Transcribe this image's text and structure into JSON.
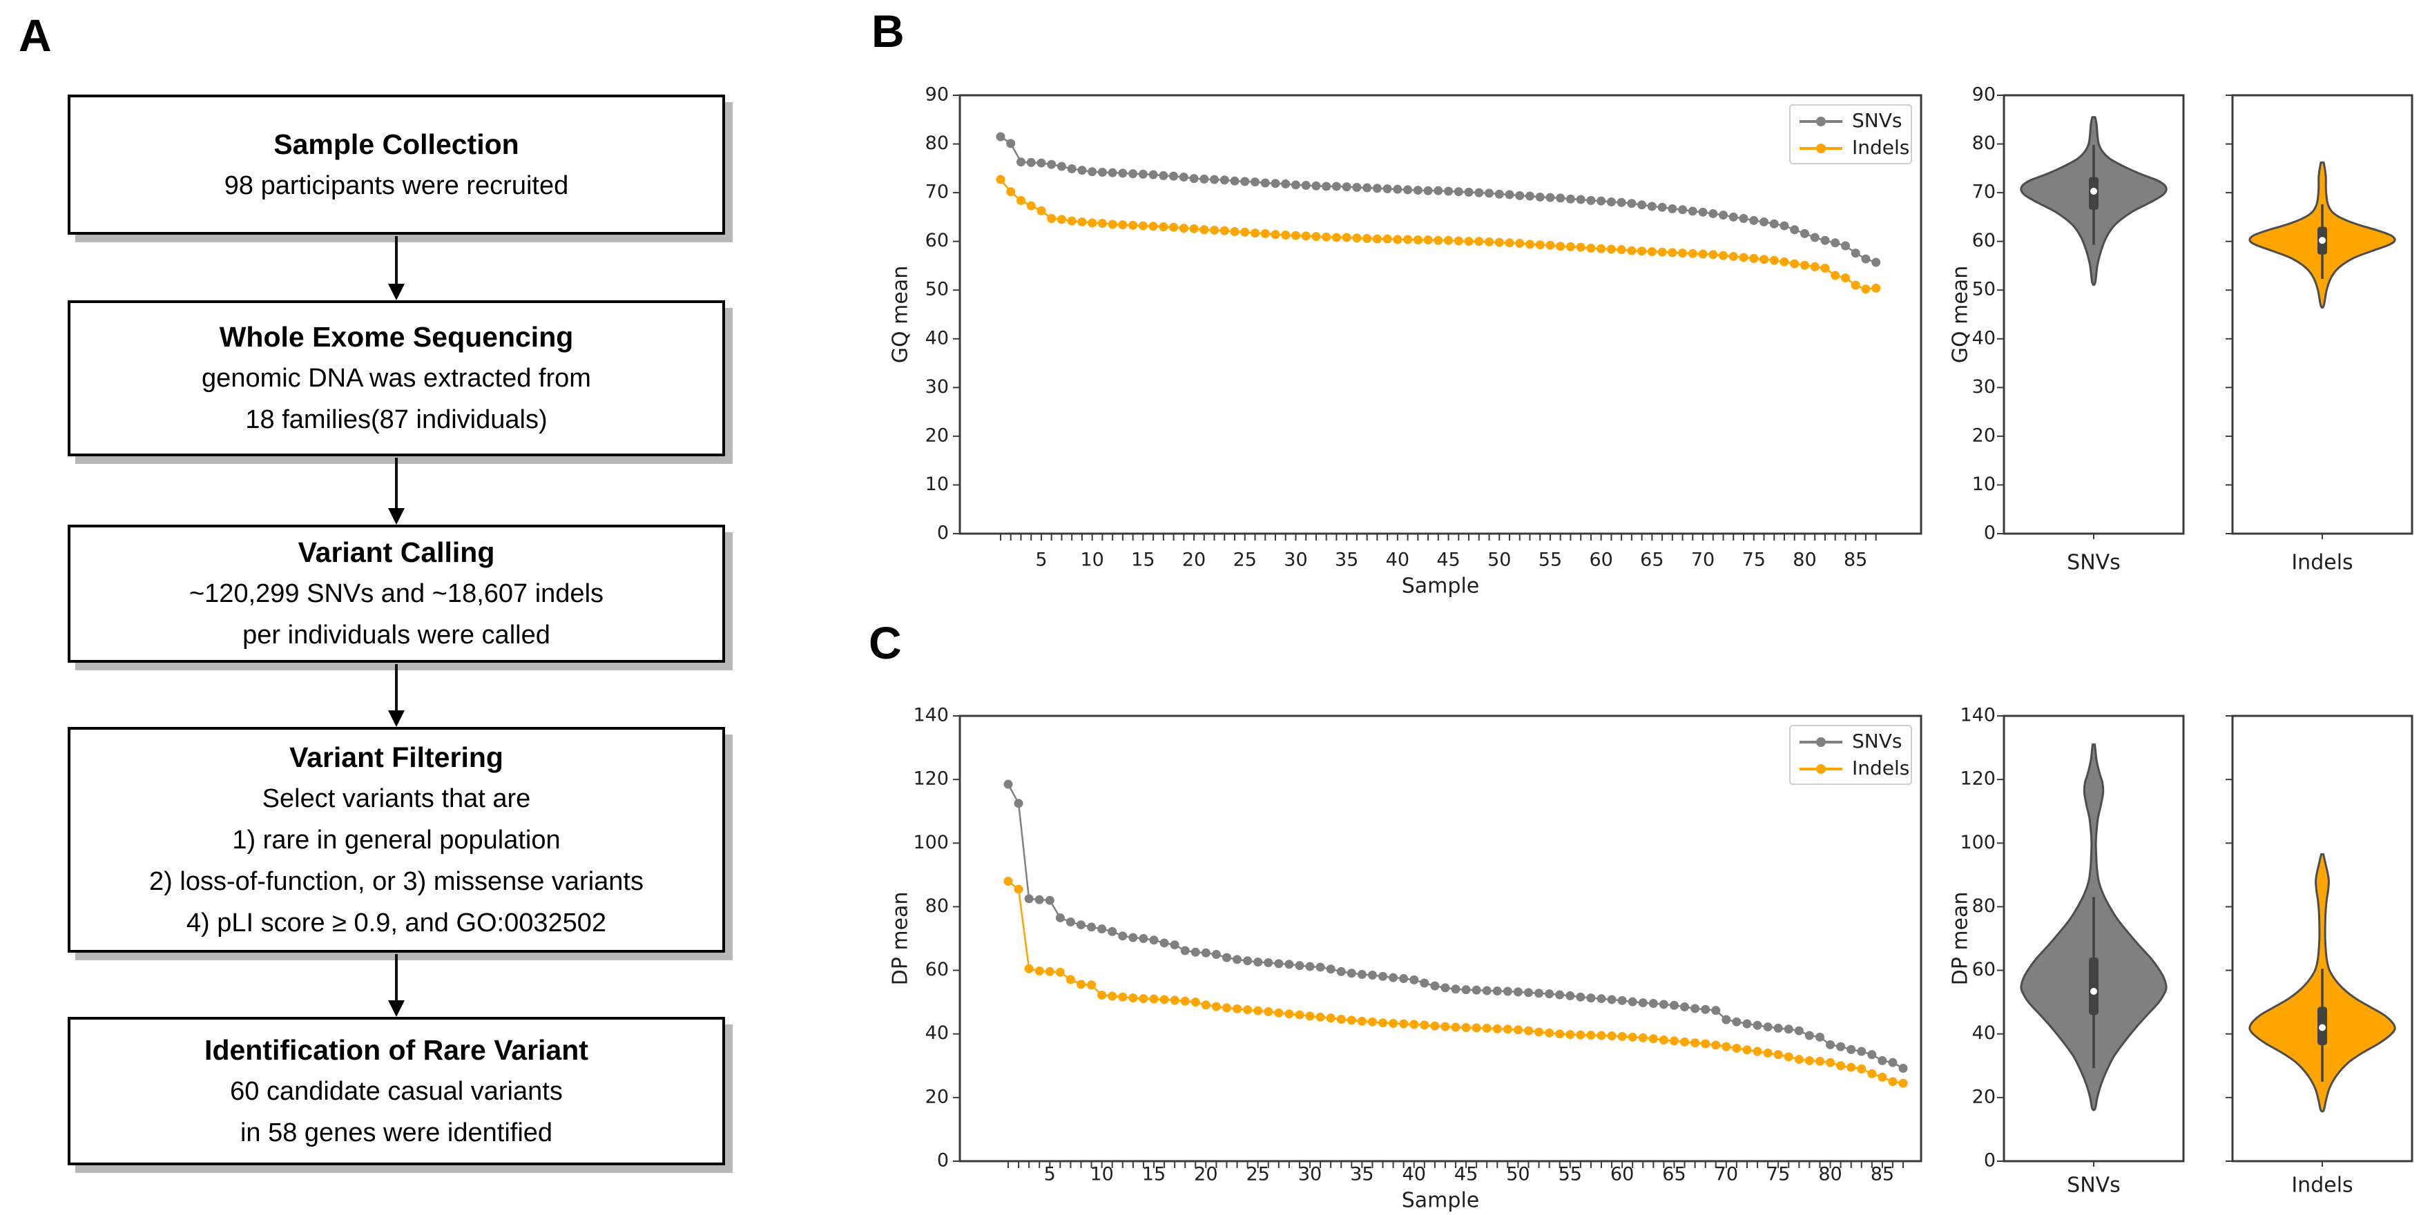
{
  "figure": {
    "panel_a_label": "A",
    "panel_b_label": "B",
    "panel_c_label": "C"
  },
  "colors": {
    "snvs": "#808080",
    "indels": "#FFA500",
    "violin_edge": "#4d4d4d",
    "inner_box": "#424242",
    "axis": "#3a3a3a",
    "text": "#1f1f1f",
    "legend_border": "#cfcfcf",
    "flow_shadow": "#b8b8b8"
  },
  "flowchart": {
    "boxes": [
      {
        "title": "Sample Collection",
        "lines": [
          "98 participants were recruited"
        ]
      },
      {
        "title": "Whole Exome Sequencing",
        "lines": [
          "genomic DNA was extracted from",
          "18 families(87 individuals)"
        ]
      },
      {
        "title": "Variant Calling",
        "lines": [
          "~120,299 SNVs and ~18,607 indels",
          "per individuals were called"
        ]
      },
      {
        "title": "Variant Filtering",
        "lines": [
          "Select variants that are",
          "1) rare in general population",
          "2) loss-of-function, or 3) missense variants",
          "4) pLI score ≥ 0.9, and GO:0032502"
        ]
      },
      {
        "title": "Identification of Rare Variant",
        "lines": [
          "60 candidate casual variants",
          "in 58 genes were identified"
        ]
      }
    ]
  },
  "chart_data": [
    {
      "id": "b_line",
      "type": "line",
      "xlabel": "Sample",
      "ylabel": "GQ mean",
      "ylim": [
        0,
        90
      ],
      "yticks": [
        0,
        10,
        20,
        30,
        40,
        50,
        60,
        70,
        80,
        90
      ],
      "xticks": [
        5,
        10,
        15,
        20,
        25,
        30,
        35,
        40,
        45,
        50,
        55,
        60,
        65,
        70,
        75,
        80,
        85
      ],
      "n_samples": 87,
      "grid": false,
      "legend_position": "upper right",
      "legend": [
        "SNVs",
        "Indels"
      ],
      "series": [
        {
          "name": "SNVs",
          "color": "#808080",
          "values": [
            81.5,
            80.1,
            76.3,
            76.2,
            76.1,
            75.8,
            75.4,
            74.9,
            74.6,
            74.3,
            74.2,
            74.1,
            74.0,
            73.9,
            73.8,
            73.7,
            73.5,
            73.4,
            73.2,
            72.9,
            72.8,
            72.7,
            72.6,
            72.4,
            72.3,
            72.2,
            72.0,
            71.9,
            71.8,
            71.6,
            71.5,
            71.4,
            71.3,
            71.3,
            71.2,
            71.1,
            71.0,
            70.9,
            70.8,
            70.7,
            70.6,
            70.5,
            70.4,
            70.4,
            70.3,
            70.2,
            70.1,
            70.0,
            69.9,
            69.7,
            69.6,
            69.4,
            69.3,
            69.1,
            69.0,
            68.9,
            68.7,
            68.6,
            68.4,
            68.3,
            68.1,
            68.0,
            67.8,
            67.5,
            67.2,
            67.0,
            66.7,
            66.5,
            66.2,
            66.0,
            65.7,
            65.4,
            65.0,
            64.7,
            64.3,
            64.0,
            63.6,
            63.2,
            62.4,
            61.6,
            60.8,
            60.2,
            59.7,
            59.1,
            57.6,
            56.4,
            55.7
          ]
        },
        {
          "name": "Indels",
          "color": "#FFA500",
          "values": [
            72.7,
            70.2,
            68.4,
            67.3,
            66.3,
            64.7,
            64.5,
            64.2,
            64.0,
            63.8,
            63.7,
            63.5,
            63.4,
            63.3,
            63.2,
            63.1,
            63.0,
            62.9,
            62.7,
            62.6,
            62.4,
            62.3,
            62.2,
            62.0,
            61.9,
            61.7,
            61.6,
            61.4,
            61.3,
            61.2,
            61.1,
            61.0,
            60.9,
            60.8,
            60.8,
            60.7,
            60.6,
            60.5,
            60.5,
            60.4,
            60.4,
            60.3,
            60.3,
            60.2,
            60.2,
            60.1,
            60.0,
            60.0,
            59.9,
            59.8,
            59.7,
            59.6,
            59.4,
            59.3,
            59.2,
            59.0,
            58.9,
            58.8,
            58.6,
            58.5,
            58.4,
            58.3,
            58.1,
            58.0,
            57.9,
            57.8,
            57.7,
            57.6,
            57.5,
            57.4,
            57.3,
            57.1,
            56.9,
            56.7,
            56.5,
            56.3,
            56.1,
            55.8,
            55.4,
            55.1,
            54.8,
            54.5,
            53.0,
            52.5,
            51.0,
            50.2,
            50.4
          ]
        }
      ]
    },
    {
      "id": "b_violin_snvs",
      "type": "violin",
      "category": "SNVs",
      "ylabel": "GQ mean",
      "color": "#808080",
      "ylim": [
        0,
        90
      ],
      "yticks": [
        0,
        10,
        20,
        30,
        40,
        50,
        60,
        70,
        80,
        90
      ],
      "show_ytick_labels": true,
      "stats": {
        "median": 70.3,
        "q1": 66.5,
        "q3": 73.2,
        "whisker_low": 59.3,
        "whisker_high": 79.8,
        "min": 51.5,
        "max": 85.5
      },
      "profile": [
        [
          51.5,
          0.02
        ],
        [
          55,
          0.05
        ],
        [
          58,
          0.1
        ],
        [
          61,
          0.18
        ],
        [
          63.5,
          0.3
        ],
        [
          66,
          0.52
        ],
        [
          68,
          0.78
        ],
        [
          69.5,
          0.95
        ],
        [
          70.5,
          1.0
        ],
        [
          71.5,
          0.98
        ],
        [
          72.5,
          0.88
        ],
        [
          74,
          0.62
        ],
        [
          75.5,
          0.4
        ],
        [
          77,
          0.22
        ],
        [
          78.5,
          0.12
        ],
        [
          80,
          0.07
        ],
        [
          82,
          0.05
        ],
        [
          84,
          0.04
        ],
        [
          85.5,
          0.02
        ]
      ]
    },
    {
      "id": "b_violin_indels",
      "type": "violin",
      "category": "Indels",
      "ylabel": "",
      "color": "#FFA500",
      "ylim": [
        0,
        90
      ],
      "yticks": [
        0,
        10,
        20,
        30,
        40,
        50,
        60,
        70,
        80,
        90
      ],
      "show_ytick_labels": false,
      "stats": {
        "median": 60.2,
        "q1": 57.3,
        "q3": 63.0,
        "whisker_low": 52.3,
        "whisker_high": 67.6,
        "min": 46.8,
        "max": 76.2
      },
      "profile": [
        [
          46.8,
          0.02
        ],
        [
          50,
          0.06
        ],
        [
          52.5,
          0.12
        ],
        [
          54.5,
          0.22
        ],
        [
          56.5,
          0.42
        ],
        [
          58,
          0.68
        ],
        [
          59.3,
          0.92
        ],
        [
          60.2,
          1.0
        ],
        [
          61.2,
          0.95
        ],
        [
          62.3,
          0.75
        ],
        [
          63.5,
          0.48
        ],
        [
          64.8,
          0.26
        ],
        [
          66,
          0.14
        ],
        [
          67.5,
          0.08
        ],
        [
          69,
          0.06
        ],
        [
          71,
          0.05
        ],
        [
          73,
          0.05
        ],
        [
          74.5,
          0.04
        ],
        [
          76.2,
          0.02
        ]
      ]
    },
    {
      "id": "c_line",
      "type": "line",
      "xlabel": "Sample",
      "ylabel": "DP mean",
      "ylim": [
        0,
        140
      ],
      "yticks": [
        0,
        20,
        40,
        60,
        80,
        100,
        120,
        140
      ],
      "xticks": [
        5,
        10,
        15,
        20,
        25,
        30,
        35,
        40,
        45,
        50,
        55,
        60,
        65,
        70,
        75,
        80,
        85
      ],
      "n_samples": 87,
      "grid": false,
      "legend_position": "upper right",
      "legend": [
        "SNVs",
        "Indels"
      ],
      "series": [
        {
          "name": "SNVs",
          "color": "#808080",
          "values": [
            118.5,
            112.5,
            82.5,
            82.2,
            82.0,
            76.5,
            75.2,
            74.3,
            73.6,
            73.0,
            72.2,
            70.8,
            70.3,
            70.0,
            69.5,
            68.6,
            68.0,
            66.2,
            65.7,
            65.5,
            65.0,
            64.0,
            63.4,
            63.0,
            62.6,
            62.4,
            62.1,
            61.9,
            61.5,
            61.2,
            61.0,
            60.4,
            59.6,
            59.1,
            58.7,
            58.5,
            58.1,
            57.7,
            57.4,
            57.0,
            56.0,
            55.1,
            54.5,
            54.1,
            53.9,
            53.8,
            53.6,
            53.5,
            53.4,
            53.2,
            53.0,
            52.8,
            52.6,
            52.3,
            52.0,
            51.6,
            51.3,
            51.1,
            50.8,
            50.5,
            50.1,
            49.8,
            49.6,
            49.3,
            49.0,
            48.5,
            48.0,
            47.7,
            47.4,
            44.5,
            43.8,
            43.2,
            42.7,
            42.2,
            41.8,
            41.5,
            41.0,
            39.5,
            39.0,
            36.6,
            36.0,
            35.1,
            34.5,
            33.5,
            31.6,
            31.0,
            29.2
          ]
        },
        {
          "name": "Indels",
          "color": "#FFA500",
          "values": [
            88.0,
            85.5,
            60.5,
            59.8,
            59.6,
            59.4,
            57.1,
            55.6,
            55.4,
            52.2,
            51.9,
            51.6,
            51.3,
            51.1,
            51.0,
            50.8,
            50.6,
            50.3,
            50.0,
            49.1,
            48.6,
            48.2,
            47.9,
            47.6,
            47.3,
            47.0,
            46.6,
            46.3,
            46.0,
            45.6,
            45.3,
            45.0,
            44.6,
            44.3,
            44.0,
            43.8,
            43.5,
            43.3,
            43.2,
            43.0,
            42.8,
            42.5,
            42.3,
            42.1,
            42.0,
            41.9,
            41.8,
            41.6,
            41.5,
            41.3,
            41.0,
            40.6,
            40.3,
            40.0,
            39.8,
            39.7,
            39.6,
            39.5,
            39.4,
            39.2,
            39.0,
            38.8,
            38.5,
            38.1,
            37.8,
            37.5,
            37.2,
            36.9,
            36.5,
            36.0,
            35.5,
            35.0,
            34.5,
            34.0,
            33.5,
            32.8,
            32.0,
            31.6,
            31.4,
            31.0,
            30.0,
            29.5,
            29.0,
            27.5,
            26.4,
            25.0,
            24.5
          ]
        }
      ]
    },
    {
      "id": "c_violin_snvs",
      "type": "violin",
      "category": "SNVs",
      "ylabel": "DP mean",
      "color": "#808080",
      "ylim": [
        0,
        140
      ],
      "yticks": [
        0,
        20,
        40,
        60,
        80,
        100,
        120,
        140
      ],
      "show_ytick_labels": true,
      "stats": {
        "median": 53.4,
        "q1": 46.0,
        "q3": 64.0,
        "whisker_low": 29.3,
        "whisker_high": 83.0,
        "min": 16.5,
        "max": 131.0
      },
      "profile": [
        [
          16.5,
          0.02
        ],
        [
          20,
          0.05
        ],
        [
          24,
          0.1
        ],
        [
          28,
          0.17
        ],
        [
          33,
          0.28
        ],
        [
          38,
          0.44
        ],
        [
          43,
          0.62
        ],
        [
          47,
          0.78
        ],
        [
          50,
          0.9
        ],
        [
          53,
          0.98
        ],
        [
          55,
          1.0
        ],
        [
          58,
          0.96
        ],
        [
          61,
          0.88
        ],
        [
          64,
          0.78
        ],
        [
          68,
          0.62
        ],
        [
          72,
          0.47
        ],
        [
          76,
          0.33
        ],
        [
          80,
          0.22
        ],
        [
          84,
          0.13
        ],
        [
          88,
          0.07
        ],
        [
          92,
          0.045
        ],
        [
          96,
          0.035
        ],
        [
          100,
          0.03
        ],
        [
          104,
          0.04
        ],
        [
          108,
          0.06
        ],
        [
          112,
          0.1
        ],
        [
          116,
          0.13
        ],
        [
          119,
          0.12
        ],
        [
          122,
          0.08
        ],
        [
          126,
          0.04
        ],
        [
          129,
          0.025
        ],
        [
          131,
          0.015
        ]
      ]
    },
    {
      "id": "c_violin_indels",
      "type": "violin",
      "category": "Indels",
      "ylabel": "",
      "color": "#FFA500",
      "ylim": [
        0,
        140
      ],
      "yticks": [
        0,
        20,
        40,
        60,
        80,
        100,
        120,
        140
      ],
      "show_ytick_labels": false,
      "stats": {
        "median": 42.0,
        "q1": 36.5,
        "q3": 48.5,
        "whisker_low": 25.0,
        "whisker_high": 60.5,
        "min": 16.0,
        "max": 96.5
      },
      "profile": [
        [
          16,
          0.02
        ],
        [
          19,
          0.05
        ],
        [
          23,
          0.1
        ],
        [
          27,
          0.2
        ],
        [
          31,
          0.36
        ],
        [
          34,
          0.55
        ],
        [
          37,
          0.78
        ],
        [
          39.5,
          0.93
        ],
        [
          41.5,
          1.0
        ],
        [
          43.5,
          0.97
        ],
        [
          46,
          0.85
        ],
        [
          48.5,
          0.66
        ],
        [
          51,
          0.47
        ],
        [
          54,
          0.3
        ],
        [
          57,
          0.18
        ],
        [
          60,
          0.1
        ],
        [
          63,
          0.065
        ],
        [
          66,
          0.05
        ],
        [
          70,
          0.04
        ],
        [
          74,
          0.04
        ],
        [
          78,
          0.045
        ],
        [
          82,
          0.06
        ],
        [
          85,
          0.08
        ],
        [
          88,
          0.09
        ],
        [
          90.5,
          0.075
        ],
        [
          93,
          0.05
        ],
        [
          95,
          0.03
        ],
        [
          96.5,
          0.015
        ]
      ]
    }
  ]
}
